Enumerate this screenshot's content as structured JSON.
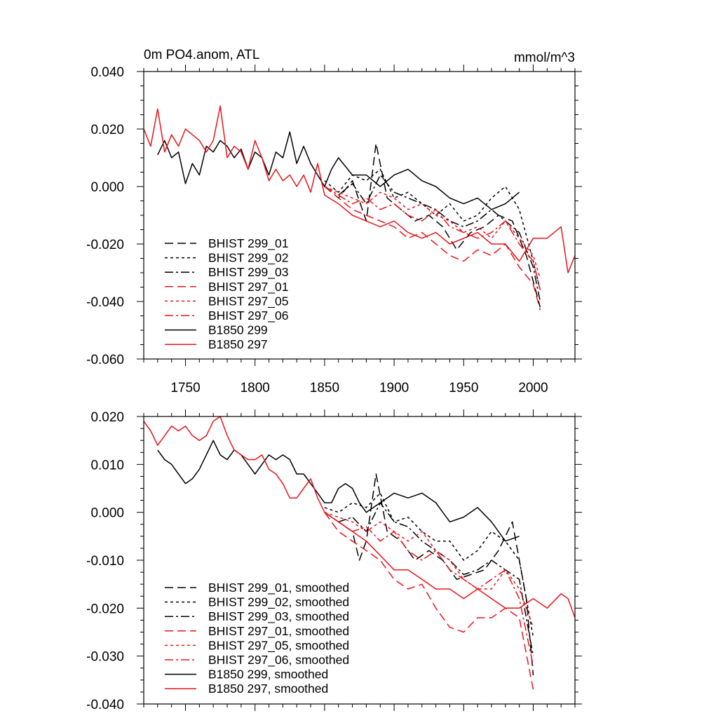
{
  "chart_data": [
    {
      "type": "line",
      "title": "0m PO4.anom, ATL",
      "units": "mmol/m^3",
      "xlim": [
        1720,
        2030
      ],
      "ylim": [
        -0.06,
        0.04
      ],
      "x_ticks": [
        1750,
        1800,
        1850,
        1900,
        1950,
        2000
      ],
      "y_ticks": [
        0.04,
        0.02,
        0.0,
        -0.02,
        -0.04,
        -0.06
      ],
      "y_tick_labels": [
        "0.040",
        "0.020",
        "0.000",
        "-0.020",
        "-0.040",
        "-0.060"
      ],
      "legend_position": "lower-left",
      "series": [
        {
          "name": "BHIST 299_01",
          "color": "#000000",
          "dash": "dashed",
          "x": [
            1850,
            1860,
            1870,
            1880,
            1887,
            1895,
            1905,
            1915,
            1925,
            1935,
            1945,
            1955,
            1965,
            1975,
            1985,
            1995,
            2005
          ],
          "y": [
            0.0,
            -0.004,
            0.002,
            -0.012,
            0.015,
            -0.004,
            -0.008,
            -0.012,
            -0.01,
            -0.014,
            -0.022,
            -0.016,
            -0.014,
            -0.01,
            -0.012,
            -0.024,
            -0.042
          ]
        },
        {
          "name": "BHIST 299_02",
          "color": "#000000",
          "dash": "dotted",
          "x": [
            1850,
            1860,
            1870,
            1880,
            1890,
            1900,
            1910,
            1920,
            1930,
            1940,
            1950,
            1960,
            1970,
            1980,
            1990,
            2000,
            2005
          ],
          "y": [
            0.002,
            -0.002,
            0.004,
            0.002,
            0.006,
            -0.004,
            -0.002,
            -0.006,
            -0.01,
            -0.006,
            -0.012,
            -0.01,
            -0.004,
            0.0,
            -0.008,
            -0.026,
            -0.036
          ]
        },
        {
          "name": "BHIST 299_03",
          "color": "#000000",
          "dash": "dashdot",
          "x": [
            1850,
            1860,
            1870,
            1880,
            1890,
            1900,
            1910,
            1920,
            1930,
            1940,
            1950,
            1960,
            1970,
            1980,
            1990,
            2000,
            2005
          ],
          "y": [
            0.0,
            -0.003,
            0.001,
            -0.006,
            0.004,
            -0.002,
            -0.004,
            -0.006,
            -0.008,
            -0.012,
            -0.014,
            -0.012,
            -0.008,
            -0.012,
            -0.016,
            -0.028,
            -0.04
          ]
        },
        {
          "name": "BHIST 297_01",
          "color": "#e8141a",
          "dash": "dashed",
          "x": [
            1850,
            1860,
            1870,
            1880,
            1890,
            1900,
            1910,
            1920,
            1930,
            1940,
            1950,
            1960,
            1970,
            1980,
            1990,
            2000,
            2005
          ],
          "y": [
            0.0,
            -0.004,
            -0.008,
            -0.01,
            -0.012,
            -0.014,
            -0.018,
            -0.016,
            -0.02,
            -0.024,
            -0.026,
            -0.022,
            -0.024,
            -0.02,
            -0.028,
            -0.034,
            -0.043
          ]
        },
        {
          "name": "BHIST 297_05",
          "color": "#e8141a",
          "dash": "dotted",
          "x": [
            1850,
            1860,
            1870,
            1880,
            1890,
            1900,
            1910,
            1920,
            1930,
            1940,
            1950,
            1960,
            1970,
            1980,
            1990,
            2000,
            2005
          ],
          "y": [
            0.0,
            -0.002,
            -0.004,
            -0.006,
            -0.002,
            -0.004,
            -0.008,
            -0.006,
            -0.01,
            -0.012,
            -0.016,
            -0.014,
            -0.018,
            -0.012,
            -0.018,
            -0.024,
            -0.032
          ]
        },
        {
          "name": "BHIST 297_06",
          "color": "#e8141a",
          "dash": "dashdot",
          "x": [
            1850,
            1860,
            1870,
            1880,
            1890,
            1900,
            1910,
            1920,
            1930,
            1940,
            1950,
            1960,
            1970,
            1980,
            1990,
            2000,
            2005
          ],
          "y": [
            0.0,
            -0.003,
            -0.006,
            -0.004,
            -0.008,
            -0.006,
            -0.01,
            -0.012,
            -0.008,
            -0.014,
            -0.016,
            -0.018,
            -0.016,
            -0.012,
            -0.02,
            -0.026,
            -0.036
          ]
        },
        {
          "name": "B1850 299",
          "color": "#000000",
          "dash": "solid",
          "x": [
            1730,
            1735,
            1740,
            1745,
            1750,
            1755,
            1760,
            1765,
            1770,
            1775,
            1780,
            1785,
            1790,
            1795,
            1800,
            1805,
            1810,
            1815,
            1820,
            1825,
            1830,
            1835,
            1840,
            1845,
            1850,
            1855,
            1860,
            1870,
            1880,
            1890,
            1900,
            1910,
            1920,
            1930,
            1940,
            1950,
            1960,
            1970,
            1980,
            1990
          ],
          "y": [
            0.011,
            0.016,
            0.01,
            0.012,
            0.001,
            0.008,
            0.004,
            0.014,
            0.012,
            0.016,
            0.014,
            0.01,
            0.013,
            0.006,
            0.012,
            0.01,
            0.004,
            0.012,
            0.01,
            0.019,
            0.008,
            0.014,
            0.008,
            0.004,
            0.0,
            0.006,
            0.01,
            0.004,
            0.004,
            0.0,
            0.004,
            0.006,
            0.002,
            0.0,
            -0.004,
            -0.006,
            -0.004,
            -0.008,
            -0.006,
            -0.002
          ]
        },
        {
          "name": "B1850 297",
          "color": "#e8141a",
          "dash": "solid",
          "x": [
            1720,
            1725,
            1730,
            1735,
            1740,
            1745,
            1750,
            1755,
            1760,
            1765,
            1770,
            1775,
            1780,
            1785,
            1790,
            1795,
            1800,
            1805,
            1810,
            1815,
            1820,
            1825,
            1830,
            1835,
            1840,
            1845,
            1850,
            1860,
            1870,
            1880,
            1890,
            1900,
            1910,
            1920,
            1930,
            1940,
            1950,
            1960,
            1970,
            1980,
            1990,
            2000,
            2010,
            2020,
            2025,
            2030
          ],
          "y": [
            0.02,
            0.014,
            0.027,
            0.012,
            0.018,
            0.014,
            0.02,
            0.018,
            0.016,
            0.012,
            0.016,
            0.028,
            0.01,
            0.014,
            0.012,
            0.006,
            0.016,
            0.01,
            0.002,
            0.006,
            0.002,
            0.004,
            0.0,
            0.004,
            -0.002,
            0.008,
            -0.003,
            -0.006,
            -0.01,
            -0.012,
            -0.014,
            -0.012,
            -0.016,
            -0.018,
            -0.016,
            -0.02,
            -0.018,
            -0.016,
            -0.02,
            -0.02,
            -0.026,
            -0.018,
            -0.018,
            -0.014,
            -0.03,
            -0.024
          ]
        }
      ]
    },
    {
      "type": "line",
      "title": "",
      "xlim": [
        1720,
        2030
      ],
      "ylim": [
        -0.04,
        0.02
      ],
      "x_ticks": [
        1750,
        1800,
        1850,
        1900,
        1950,
        2000
      ],
      "y_ticks": [
        0.02,
        0.01,
        0.0,
        -0.01,
        -0.02,
        -0.03,
        -0.04
      ],
      "y_tick_labels": [
        "0.020",
        "0.010",
        "0.000",
        "-0.010",
        "-0.020",
        "-0.030",
        "-0.040"
      ],
      "legend_position": "lower-left",
      "series": [
        {
          "name": "BHIST 299_01, smoothed",
          "color": "#000000",
          "dash": "dashed",
          "x": [
            1850,
            1860,
            1870,
            1875,
            1880,
            1887,
            1895,
            1905,
            1915,
            1925,
            1935,
            1945,
            1955,
            1965,
            1975,
            1985,
            1995,
            2000
          ],
          "y": [
            0.0,
            -0.002,
            -0.004,
            -0.01,
            -0.006,
            0.008,
            -0.004,
            -0.006,
            -0.01,
            -0.008,
            -0.01,
            -0.014,
            -0.013,
            -0.012,
            -0.008,
            -0.002,
            -0.018,
            -0.034
          ]
        },
        {
          "name": "BHIST 299_02, smoothed",
          "color": "#000000",
          "dash": "dotted",
          "x": [
            1850,
            1860,
            1870,
            1880,
            1890,
            1900,
            1910,
            1920,
            1930,
            1940,
            1950,
            1960,
            1970,
            1980,
            1990,
            2000
          ],
          "y": [
            0.001,
            0.0,
            0.002,
            0.001,
            0.004,
            -0.002,
            -0.001,
            -0.004,
            -0.006,
            -0.006,
            -0.01,
            -0.008,
            -0.004,
            -0.006,
            -0.01,
            -0.026
          ]
        },
        {
          "name": "BHIST 299_03, smoothed",
          "color": "#000000",
          "dash": "dashdot",
          "x": [
            1850,
            1860,
            1870,
            1880,
            1890,
            1900,
            1910,
            1920,
            1930,
            1940,
            1950,
            1960,
            1970,
            1980,
            1990,
            2000
          ],
          "y": [
            0.0,
            -0.002,
            -0.001,
            -0.004,
            0.002,
            -0.002,
            -0.003,
            -0.006,
            -0.008,
            -0.01,
            -0.013,
            -0.012,
            -0.01,
            -0.012,
            -0.014,
            -0.03
          ]
        },
        {
          "name": "BHIST 297_01, smoothed",
          "color": "#e8141a",
          "dash": "dashed",
          "x": [
            1850,
            1860,
            1870,
            1880,
            1890,
            1900,
            1910,
            1920,
            1930,
            1940,
            1950,
            1960,
            1970,
            1980,
            1990,
            2000
          ],
          "y": [
            0.0,
            -0.004,
            -0.006,
            -0.008,
            -0.01,
            -0.014,
            -0.016,
            -0.015,
            -0.02,
            -0.024,
            -0.025,
            -0.022,
            -0.022,
            -0.02,
            -0.022,
            -0.037
          ]
        },
        {
          "name": "BHIST 297_05, smoothed",
          "color": "#e8141a",
          "dash": "dotted",
          "x": [
            1850,
            1860,
            1870,
            1880,
            1890,
            1900,
            1910,
            1920,
            1930,
            1940,
            1950,
            1960,
            1970,
            1980,
            1990,
            2000
          ],
          "y": [
            0.0,
            -0.001,
            -0.002,
            -0.004,
            -0.002,
            -0.004,
            -0.006,
            -0.004,
            -0.008,
            -0.01,
            -0.014,
            -0.016,
            -0.016,
            -0.012,
            -0.016,
            -0.024
          ]
        },
        {
          "name": "BHIST 297_06, smoothed",
          "color": "#e8141a",
          "dash": "dashdot",
          "x": [
            1850,
            1860,
            1870,
            1880,
            1890,
            1900,
            1910,
            1920,
            1930,
            1940,
            1950,
            1960,
            1970,
            1980,
            1990,
            2000
          ],
          "y": [
            0.0,
            -0.002,
            -0.004,
            -0.003,
            -0.006,
            -0.004,
            -0.008,
            -0.01,
            -0.008,
            -0.012,
            -0.014,
            -0.016,
            -0.014,
            -0.012,
            -0.018,
            -0.032
          ]
        },
        {
          "name": "B1850 299, smoothed",
          "color": "#000000",
          "dash": "solid",
          "x": [
            1730,
            1735,
            1740,
            1745,
            1750,
            1755,
            1760,
            1765,
            1770,
            1775,
            1780,
            1785,
            1790,
            1795,
            1800,
            1805,
            1810,
            1815,
            1820,
            1825,
            1830,
            1835,
            1840,
            1845,
            1850,
            1855,
            1860,
            1865,
            1870,
            1875,
            1880,
            1890,
            1900,
            1910,
            1920,
            1930,
            1940,
            1950,
            1960,
            1970,
            1980,
            1990
          ],
          "y": [
            0.013,
            0.011,
            0.01,
            0.008,
            0.006,
            0.007,
            0.009,
            0.012,
            0.015,
            0.012,
            0.011,
            0.013,
            0.012,
            0.01,
            0.008,
            0.01,
            0.012,
            0.011,
            0.012,
            0.011,
            0.008,
            0.008,
            0.006,
            0.004,
            0.002,
            0.002,
            0.005,
            0.006,
            0.005,
            0.002,
            0.0,
            0.002,
            0.004,
            0.003,
            0.004,
            0.002,
            -0.002,
            -0.001,
            0.001,
            -0.002,
            -0.006,
            -0.005
          ]
        },
        {
          "name": "B1850 297, smoothed",
          "color": "#e8141a",
          "dash": "solid",
          "x": [
            1720,
            1725,
            1730,
            1735,
            1740,
            1745,
            1750,
            1755,
            1760,
            1765,
            1770,
            1775,
            1780,
            1785,
            1790,
            1795,
            1800,
            1805,
            1810,
            1815,
            1820,
            1825,
            1830,
            1835,
            1840,
            1845,
            1850,
            1860,
            1870,
            1880,
            1890,
            1900,
            1910,
            1920,
            1930,
            1940,
            1950,
            1960,
            1970,
            1980,
            1990,
            2000,
            2010,
            2020,
            2025,
            2030
          ],
          "y": [
            0.019,
            0.017,
            0.014,
            0.016,
            0.018,
            0.017,
            0.018,
            0.016,
            0.015,
            0.016,
            0.019,
            0.02,
            0.016,
            0.013,
            0.012,
            0.011,
            0.011,
            0.012,
            0.009,
            0.008,
            0.006,
            0.003,
            0.003,
            0.005,
            0.007,
            0.003,
            0.0,
            -0.002,
            -0.004,
            -0.006,
            -0.009,
            -0.012,
            -0.012,
            -0.014,
            -0.016,
            -0.016,
            -0.018,
            -0.016,
            -0.018,
            -0.02,
            -0.02,
            -0.018,
            -0.02,
            -0.017,
            -0.018,
            -0.022
          ]
        }
      ]
    }
  ]
}
